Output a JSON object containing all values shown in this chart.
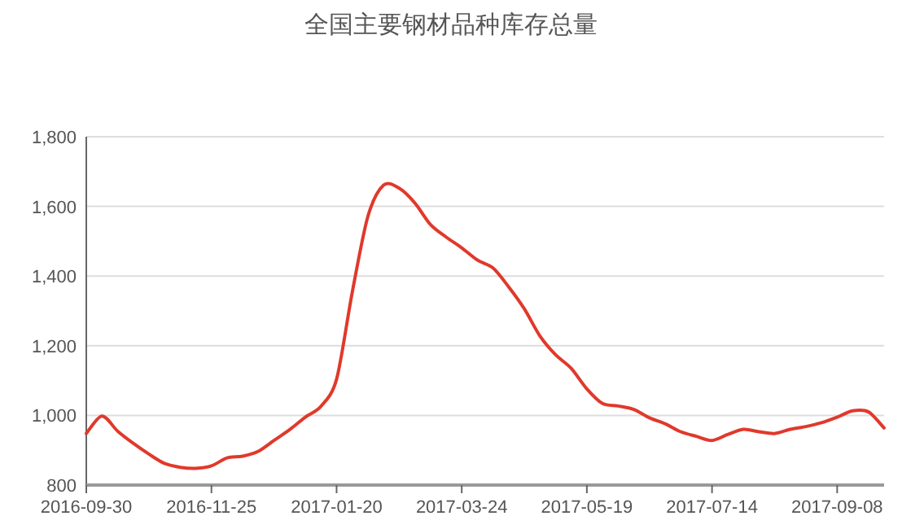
{
  "chart_data": {
    "type": "line",
    "title": "全国主要钢材品种库存总量",
    "categories": [
      "2016-09-30",
      null,
      null,
      null,
      null,
      null,
      null,
      null,
      "2016-11-25",
      null,
      null,
      null,
      null,
      null,
      null,
      null,
      "2017-01-20",
      null,
      null,
      null,
      null,
      null,
      null,
      null,
      "2017-03-24",
      null,
      null,
      null,
      null,
      null,
      null,
      null,
      "2017-05-19",
      null,
      null,
      null,
      null,
      null,
      null,
      null,
      "2017-07-14",
      null,
      null,
      null,
      null,
      null,
      null,
      null,
      "2017-09-08",
      null,
      null,
      null
    ],
    "series": [
      {
        "color": "#e0392b",
        "values": [
          948,
          998,
          955,
          920,
          889,
          862,
          851,
          848,
          855,
          878,
          883,
          897,
          928,
          959,
          995,
          1026,
          1104,
          1353,
          1571,
          1661,
          1652,
          1610,
          1548,
          1512,
          1481,
          1446,
          1423,
          1369,
          1306,
          1228,
          1174,
          1135,
          1076,
          1034,
          1027,
          1017,
          993,
          976,
          953,
          940,
          928,
          945,
          960,
          953,
          948,
          960,
          968,
          979,
          995,
          1013,
          1010,
          964
        ]
      }
    ],
    "ylim": [
      800,
      1800
    ],
    "yticks": [
      {
        "value": 800,
        "label": "800"
      },
      {
        "value": 1000,
        "label": "1,000"
      },
      {
        "value": 1200,
        "label": "1,200"
      },
      {
        "value": 1400,
        "label": "1,400"
      },
      {
        "value": 1600,
        "label": "1,600"
      },
      {
        "value": 1800,
        "label": "1,800"
      }
    ],
    "grid": "y",
    "line_style": "solid"
  }
}
